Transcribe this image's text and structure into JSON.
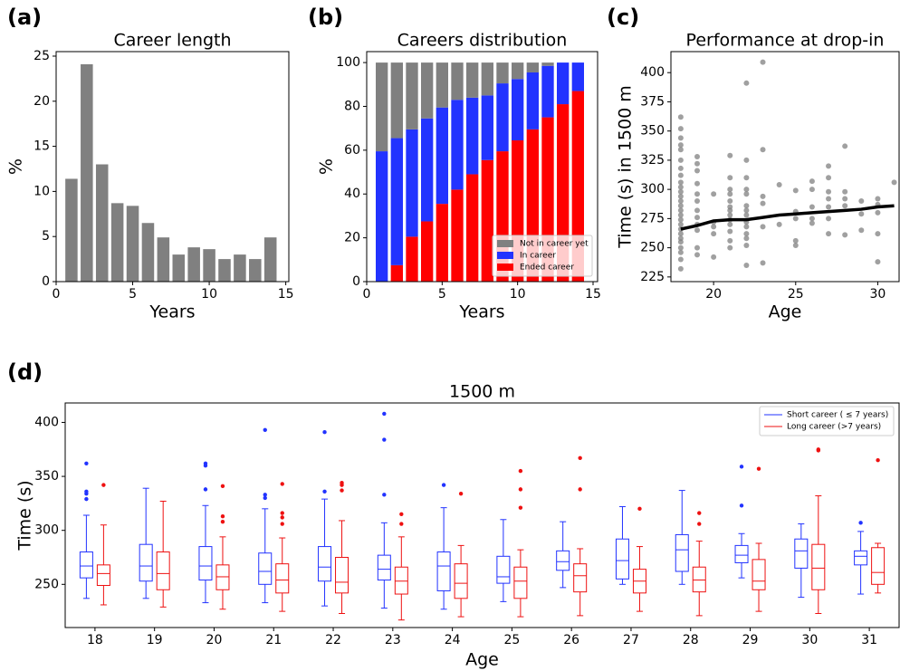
{
  "chart_data": [
    {
      "type": "bar",
      "panel_label": "(a)",
      "title": "Career length",
      "xlabel": "Years",
      "ylabel": "%",
      "x": [
        1,
        2,
        3,
        4,
        5,
        6,
        7,
        8,
        9,
        10,
        11,
        12,
        13,
        14
      ],
      "values": [
        11.4,
        24.1,
        13,
        8.7,
        8.4,
        6.5,
        4.9,
        3.0,
        3.8,
        3.6,
        2.5,
        3.0,
        2.5,
        4.9
      ],
      "color": "#808080",
      "xlim": [
        0,
        15.2
      ],
      "xticks": [
        0,
        5,
        10,
        15
      ],
      "ylim": [
        0,
        25.5
      ],
      "yticks": [
        0,
        5,
        10,
        15,
        20,
        25
      ]
    },
    {
      "type": "stacked_bar",
      "panel_label": "(b)",
      "title": "Careers distribution",
      "xlabel": "Years",
      "ylabel": "%",
      "x": [
        1,
        2,
        3,
        4,
        5,
        6,
        7,
        8,
        9,
        10,
        11,
        12,
        13,
        14
      ],
      "series": [
        {
          "name": "Not in career yet",
          "color": "#808080",
          "values": [
            40.5,
            34.5,
            30.5,
            25.5,
            20.5,
            17,
            16,
            15,
            9.5,
            7.5,
            4.5,
            1.5,
            0,
            0
          ]
        },
        {
          "name": "In career",
          "color": "#2233ff",
          "values": [
            59.5,
            58,
            49,
            47,
            44,
            41,
            35,
            29.5,
            31,
            28,
            26,
            23.5,
            19,
            13
          ]
        },
        {
          "name": "Ended career",
          "color": "#ff0000",
          "values": [
            0,
            7.5,
            20.5,
            27.5,
            35.5,
            42,
            49,
            55.5,
            59.5,
            64.5,
            69.5,
            75,
            81,
            87
          ]
        }
      ],
      "legend": "lower right",
      "xlim": [
        0,
        15.3
      ],
      "xticks": [
        0,
        5,
        10,
        15
      ],
      "ylim": [
        0,
        105
      ],
      "yticks": [
        0,
        20,
        40,
        60,
        80,
        100
      ]
    },
    {
      "type": "scatter",
      "panel_label": "(c)",
      "title": "Performance at drop-in",
      "xlabel": "Age",
      "ylabel": "Time (s) in 1500 m",
      "series": [
        {
          "type": "scatter",
          "color": "#808080",
          "x": [
            18,
            18,
            18,
            18,
            18,
            18,
            18,
            18,
            18,
            18,
            18,
            18,
            18,
            18,
            18,
            18,
            18,
            18,
            18,
            18,
            18,
            18,
            18,
            18,
            18,
            18,
            19,
            19,
            19,
            19,
            19,
            19,
            19,
            19,
            19,
            19,
            19,
            19,
            20,
            20,
            20,
            20,
            20,
            21,
            21,
            21,
            21,
            21,
            21,
            21,
            21,
            21,
            21,
            21,
            21,
            21,
            22,
            22,
            22,
            22,
            22,
            22,
            22,
            22,
            22,
            22,
            22,
            22,
            22,
            22,
            23,
            23,
            23,
            23,
            23,
            23,
            24,
            24,
            25,
            25,
            25,
            25,
            25,
            26,
            26,
            26,
            26,
            26,
            27,
            27,
            27,
            27,
            27,
            27,
            27,
            28,
            28,
            28,
            28,
            28,
            29,
            29,
            29,
            30,
            30,
            30,
            30,
            30,
            31
          ],
          "y": [
            232,
            240,
            246,
            250,
            255,
            258,
            262,
            266,
            270,
            274,
            278,
            282,
            286,
            290,
            294,
            298,
            302,
            306,
            312,
            318,
            325,
            334,
            338,
            344,
            352,
            362,
            244,
            250,
            265,
            270,
            276,
            282,
            290,
            296,
            305,
            316,
            322,
            328,
            242,
            262,
            268,
            272,
            296,
            250,
            256,
            264,
            270,
            274,
            278,
            282,
            285,
            290,
            296,
            300,
            310,
            329,
            235,
            252,
            258,
            262,
            268,
            272,
            278,
            282,
            286,
            296,
            300,
            310,
            325,
            391,
            237,
            268,
            288,
            294,
            334,
            409,
            270,
            304,
            252,
            256,
            275,
            281,
            299,
            271,
            275,
            285,
            300,
            307,
            262,
            275,
            285,
            292,
            298,
            310,
            320,
            261,
            286,
            292,
            298,
            337,
            265,
            279,
            290,
            238,
            262,
            280,
            287,
            292,
            306
          ]
        },
        {
          "type": "line",
          "color": "#000000",
          "x": [
            18,
            19,
            20,
            21,
            22,
            23,
            24,
            25,
            26,
            27,
            28,
            29,
            30,
            31
          ],
          "y": [
            266,
            269,
            273,
            274,
            274,
            276,
            278,
            279,
            280,
            281,
            282,
            283,
            285,
            286
          ]
        }
      ],
      "xlim": [
        17.4,
        31.3
      ],
      "xticks": [
        20,
        25,
        30
      ],
      "ylim": [
        221,
        418
      ],
      "yticks": [
        225,
        250,
        275,
        300,
        325,
        350,
        375,
        400
      ]
    },
    {
      "type": "boxplot",
      "panel_label": "(d)",
      "title": "1500 m",
      "xlabel": "Age",
      "ylabel": "Time (s)",
      "categories": [
        18,
        19,
        20,
        21,
        22,
        23,
        24,
        25,
        26,
        27,
        28,
        29,
        30,
        31
      ],
      "series": [
        {
          "name": "Short career ( ≤ 7 years)",
          "color": "#2233ff",
          "whislo": [
            237,
            237,
            233,
            233,
            230,
            228,
            227,
            234,
            247,
            250,
            250,
            256,
            238,
            241
          ],
          "q1": [
            256,
            253,
            254,
            250,
            253,
            254,
            244,
            251,
            263,
            255,
            262,
            270,
            265,
            268
          ],
          "median": [
            267,
            267,
            267,
            262,
            266,
            264,
            267,
            257,
            271,
            272,
            282,
            277,
            281,
            276
          ],
          "q3": [
            280,
            287,
            285,
            279,
            285,
            277,
            280,
            276,
            281,
            292,
            296,
            286,
            292,
            281
          ],
          "whishi": [
            314,
            339,
            323,
            320,
            329,
            307,
            321,
            310,
            308,
            322,
            337,
            297,
            306,
            299
          ],
          "fliers": [
            [
              329,
              334,
              336,
              362
            ],
            [],
            [
              338,
              360,
              362
            ],
            [
              330,
              333,
              393
            ],
            [
              336,
              391
            ],
            [
              333,
              384,
              408
            ],
            [
              342
            ],
            [],
            [],
            [],
            [],
            [
              323,
              359
            ],
            [],
            [
              307
            ]
          ]
        },
        {
          "name": "Long career (>7 years)",
          "color": "#ee1111",
          "whislo": [
            231,
            229,
            227,
            225,
            223,
            217,
            220,
            220,
            221,
            225,
            221,
            225,
            223,
            242
          ],
          "q1": [
            249,
            245,
            245,
            242,
            242,
            241,
            237,
            237,
            243,
            242,
            243,
            245,
            245,
            250
          ],
          "median": [
            260,
            260,
            257,
            254,
            252,
            253,
            251,
            253,
            258,
            253,
            254,
            253,
            265,
            261
          ],
          "q3": [
            268,
            280,
            268,
            269,
            275,
            266,
            269,
            266,
            269,
            264,
            266,
            273,
            287,
            284
          ],
          "whishi": [
            305,
            327,
            294,
            293,
            309,
            294,
            286,
            282,
            283,
            285,
            290,
            288,
            332,
            288
          ],
          "fliers": [
            [
              342
            ],
            [],
            [
              308,
              313,
              341
            ],
            [
              306,
              312,
              316,
              343
            ],
            [
              337,
              342,
              344
            ],
            [
              306,
              315
            ],
            [
              334
            ],
            [
              321,
              338,
              355
            ],
            [
              338,
              367
            ],
            [
              320
            ],
            [
              306,
              316
            ],
            [
              357
            ],
            [
              374,
              375
            ],
            [
              365
            ]
          ]
        }
      ],
      "legend": "upper right",
      "ylim": [
        210,
        418
      ],
      "yticks": [
        250,
        300,
        350,
        400
      ]
    }
  ]
}
